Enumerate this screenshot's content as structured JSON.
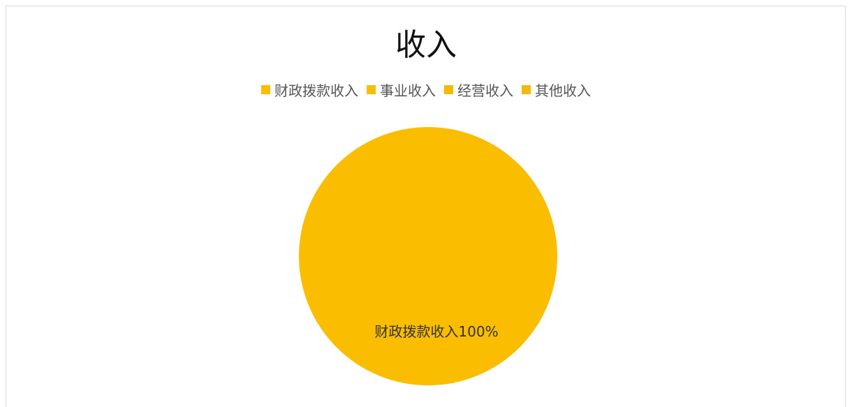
{
  "chart_data": {
    "type": "pie",
    "title": "收入",
    "categories": [
      "财政拨款收入",
      "事业收入",
      "经营收入",
      "其他收入"
    ],
    "values": [
      100,
      0,
      0,
      0
    ],
    "colors": [
      "#FBBD00",
      "#F5BE07",
      "#F2BB00",
      "#F3B910"
    ],
    "data_labels": [
      {
        "category": "财政拨款收入",
        "text": "财政拨款收入100%"
      }
    ],
    "legend_position": "top"
  }
}
